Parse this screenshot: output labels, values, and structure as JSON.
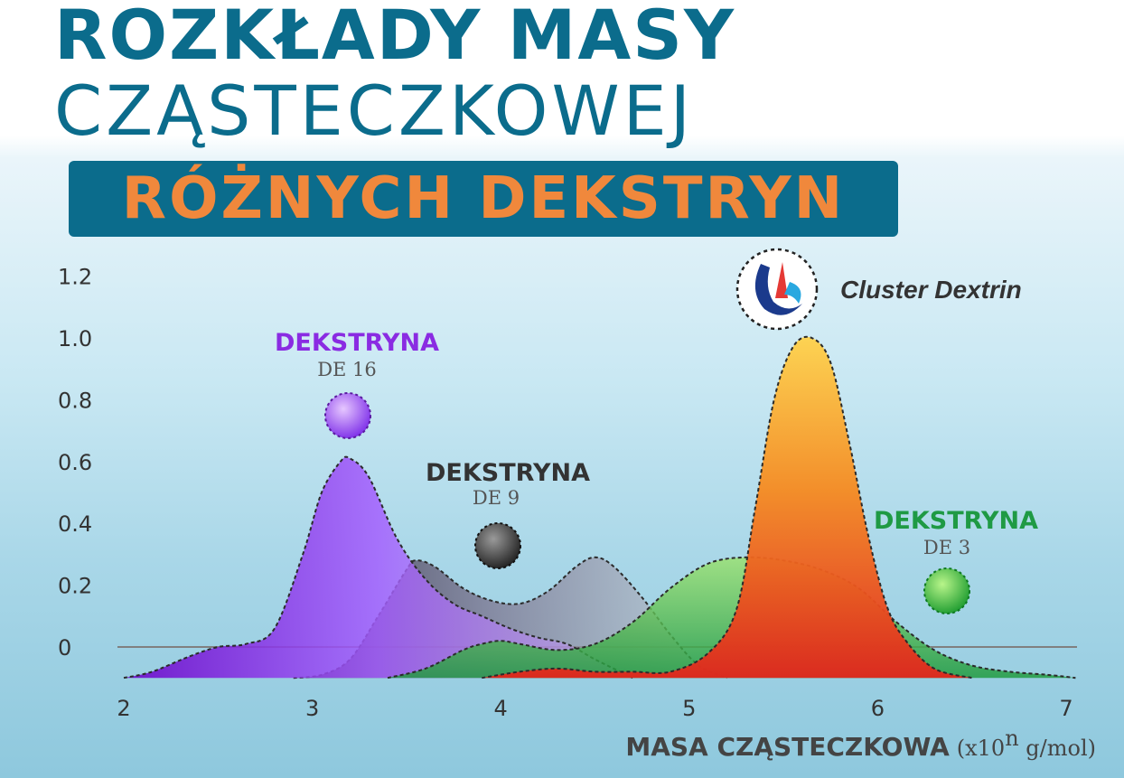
{
  "header": {
    "title_line1": "ROZKŁADY MASY",
    "title_line2": "CZĄSTECZKOWEJ",
    "subtitle": "RÓŻNYCH DEKSTRYN"
  },
  "logo": {
    "brand": "Cluster Dextrin"
  },
  "colors": {
    "title": "#0b6c8c",
    "subtitle": "#f0883c",
    "de16": "#8a2be2",
    "de9": "#333333",
    "de3": "#2aa44a",
    "cluster": "#f07a1a"
  },
  "chart_data": {
    "type": "area",
    "x_ticks": [
      "2",
      "3",
      "4",
      "5",
      "6",
      "7"
    ],
    "y_ticks": [
      "0",
      "0.2",
      "0.4",
      "0.6",
      "0.8",
      "1.0",
      "1.2"
    ],
    "xlim": [
      2,
      7
    ],
    "ylim": [
      -0.1,
      1.2
    ],
    "grid": false,
    "xlabel": "MASA CZĄSTECZKOWA",
    "xlabel_unit_prefix": "(x10",
    "xlabel_unit_exp": "n",
    "xlabel_unit_suffix": " g/mol)",
    "series": [
      {
        "id": "de9",
        "label_title": "DEKSTRYNA",
        "label_sub": "DE 9",
        "color": "#333333",
        "x": [
          2.9,
          3.05,
          3.2,
          3.35,
          3.5,
          3.55,
          3.65,
          3.8,
          3.95,
          4.1,
          4.25,
          4.4,
          4.5,
          4.6,
          4.75,
          4.9,
          5.05,
          5.2
        ],
        "y": [
          -0.1,
          -0.09,
          -0.04,
          0.1,
          0.25,
          0.28,
          0.26,
          0.19,
          0.15,
          0.14,
          0.18,
          0.26,
          0.29,
          0.26,
          0.16,
          0.04,
          -0.06,
          -0.1
        ]
      },
      {
        "id": "de16",
        "label_title": "DEKSTRYNA",
        "label_sub": "DE 16",
        "color": "#8a2be2",
        "x": [
          2.0,
          2.15,
          2.35,
          2.5,
          2.65,
          2.8,
          2.95,
          3.05,
          3.15,
          3.2,
          3.3,
          3.45,
          3.6,
          3.75,
          3.9,
          4.05,
          4.2,
          4.35,
          4.5,
          4.7
        ],
        "y": [
          -0.1,
          -0.08,
          -0.03,
          0.0,
          0.01,
          0.06,
          0.3,
          0.5,
          0.6,
          0.61,
          0.55,
          0.35,
          0.22,
          0.14,
          0.1,
          0.06,
          0.03,
          0.01,
          -0.04,
          -0.1
        ]
      },
      {
        "id": "de3",
        "label_title": "DEKSTRYNA",
        "label_sub": "DE 3",
        "color": "#2aa44a",
        "x": [
          3.4,
          3.6,
          3.8,
          3.9,
          4.0,
          4.1,
          4.3,
          4.5,
          4.7,
          4.9,
          5.1,
          5.3,
          5.5,
          5.7,
          5.9,
          6.1,
          6.3,
          6.5,
          6.7,
          6.9,
          7.05
        ],
        "y": [
          -0.1,
          -0.07,
          -0.01,
          0.01,
          0.02,
          0.01,
          -0.01,
          0.01,
          0.08,
          0.19,
          0.27,
          0.29,
          0.28,
          0.25,
          0.19,
          0.08,
          -0.01,
          -0.06,
          -0.08,
          -0.09,
          -0.1
        ]
      },
      {
        "id": "cluster",
        "label_title": "",
        "label_sub": "",
        "color": "#f07a1a",
        "x": [
          3.9,
          4.1,
          4.3,
          4.5,
          4.7,
          4.9,
          5.1,
          5.25,
          5.35,
          5.45,
          5.55,
          5.65,
          5.75,
          5.85,
          5.95,
          6.05,
          6.15,
          6.3,
          6.5
        ],
        "y": [
          -0.1,
          -0.08,
          -0.07,
          -0.08,
          -0.08,
          -0.08,
          -0.02,
          0.12,
          0.45,
          0.8,
          0.97,
          1.0,
          0.92,
          0.66,
          0.36,
          0.13,
          0.02,
          -0.07,
          -0.1
        ]
      }
    ]
  }
}
